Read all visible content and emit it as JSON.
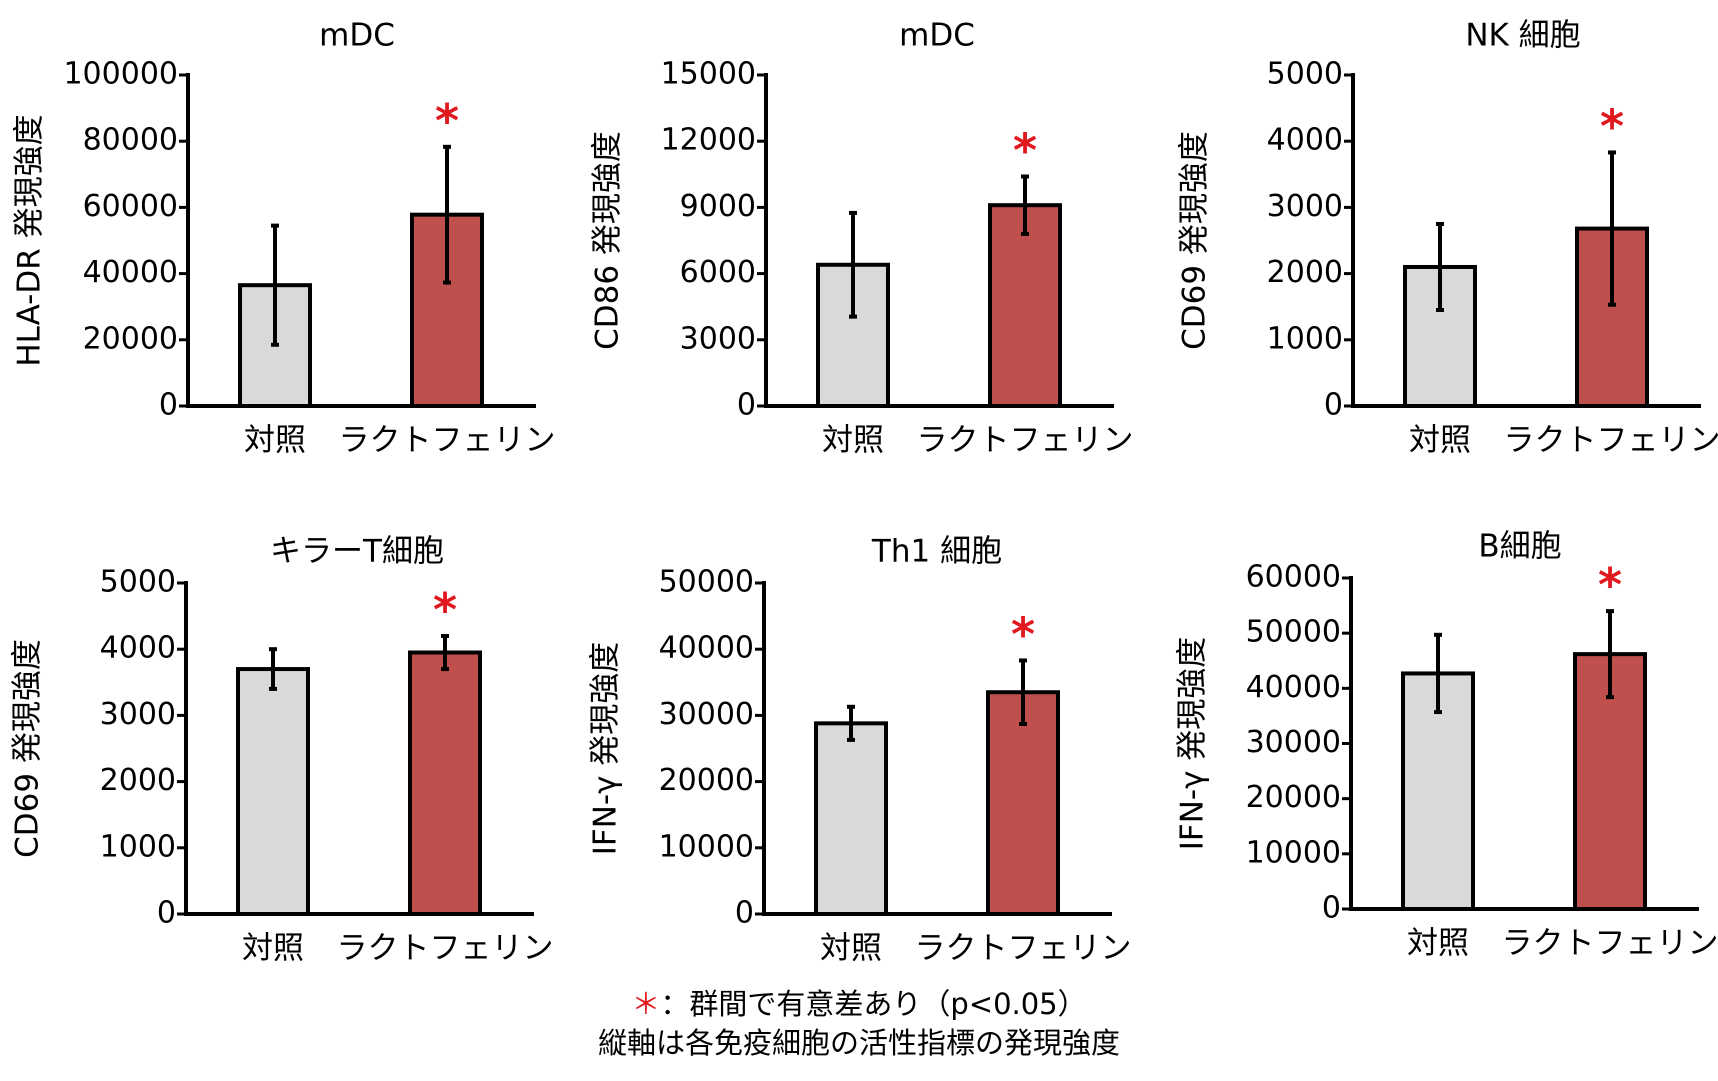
{
  "colors": {
    "control": "#d9d9d9",
    "lactoferrin": "#c0504d",
    "significance": "#e0191f"
  },
  "chart_data": [
    {
      "type": "bar",
      "title": "mDC",
      "ylabel": "HLA-DR 発現強度",
      "categories": [
        "対照",
        "ラクトフェリン"
      ],
      "values": [
        36500,
        57800
      ],
      "errors": [
        18000,
        20500
      ],
      "ylim": [
        0,
        100000
      ],
      "yticks": [
        "0",
        "20000",
        "40000",
        "60000",
        "80000",
        "100000"
      ],
      "significant": [
        false,
        true
      ],
      "marker": "*"
    },
    {
      "type": "bar",
      "title": "mDC",
      "ylabel": "CD86 発現強度",
      "categories": [
        "対照",
        "ラクトフェリン"
      ],
      "values": [
        6400,
        9100
      ],
      "errors": [
        2350,
        1300
      ],
      "ylim": [
        0,
        15000
      ],
      "yticks": [
        "0",
        "3000",
        "6000",
        "9000",
        "12000",
        "15000"
      ],
      "significant": [
        false,
        true
      ],
      "marker": "*"
    },
    {
      "type": "bar",
      "title": "NK 細胞",
      "ylabel": "CD69 発現強度",
      "categories": [
        "対照",
        "ラクトフェリン"
      ],
      "values": [
        2100,
        2680
      ],
      "errors": [
        650,
        1150
      ],
      "ylim": [
        0,
        5000
      ],
      "yticks": [
        "0",
        "1000",
        "2000",
        "3000",
        "4000",
        "5000"
      ],
      "significant": [
        false,
        true
      ],
      "marker": "*"
    },
    {
      "type": "bar",
      "title": "キラーT細胞",
      "ylabel": "CD69 発現強度",
      "categories": [
        "対照",
        "ラクトフェリン"
      ],
      "values": [
        3700,
        3950
      ],
      "errors": [
        300,
        250
      ],
      "ylim": [
        0,
        5000
      ],
      "yticks": [
        "0",
        "1000",
        "2000",
        "3000",
        "4000",
        "5000"
      ],
      "significant": [
        false,
        true
      ],
      "marker": "*"
    },
    {
      "type": "bar",
      "title": "Th1 細胞",
      "ylabel": "IFN-γ 発現強度",
      "categories": [
        "対照",
        "ラクトフェリン"
      ],
      "values": [
        28800,
        33500
      ],
      "errors": [
        2500,
        4800
      ],
      "ylim": [
        0,
        50000
      ],
      "yticks": [
        "0",
        "10000",
        "20000",
        "30000",
        "40000",
        "50000"
      ],
      "significant": [
        false,
        true
      ],
      "marker": "*"
    },
    {
      "type": "bar",
      "title": "B細胞",
      "ylabel": "IFN-γ 発現強度",
      "categories": [
        "対照",
        "ラクトフェリン"
      ],
      "values": [
        42700,
        46200
      ],
      "errors": [
        7000,
        7800
      ],
      "ylim": [
        0,
        60000
      ],
      "yticks": [
        "0",
        "10000",
        "20000",
        "30000",
        "40000",
        "50000",
        "60000"
      ],
      "significant": [
        false,
        true
      ],
      "marker": "*"
    }
  ],
  "footnote": {
    "marker": "＊",
    "line1": "：群間で有意差あり（p<0.05）",
    "line2": "縦軸は各免疫細胞の活性指標の発現強度"
  }
}
